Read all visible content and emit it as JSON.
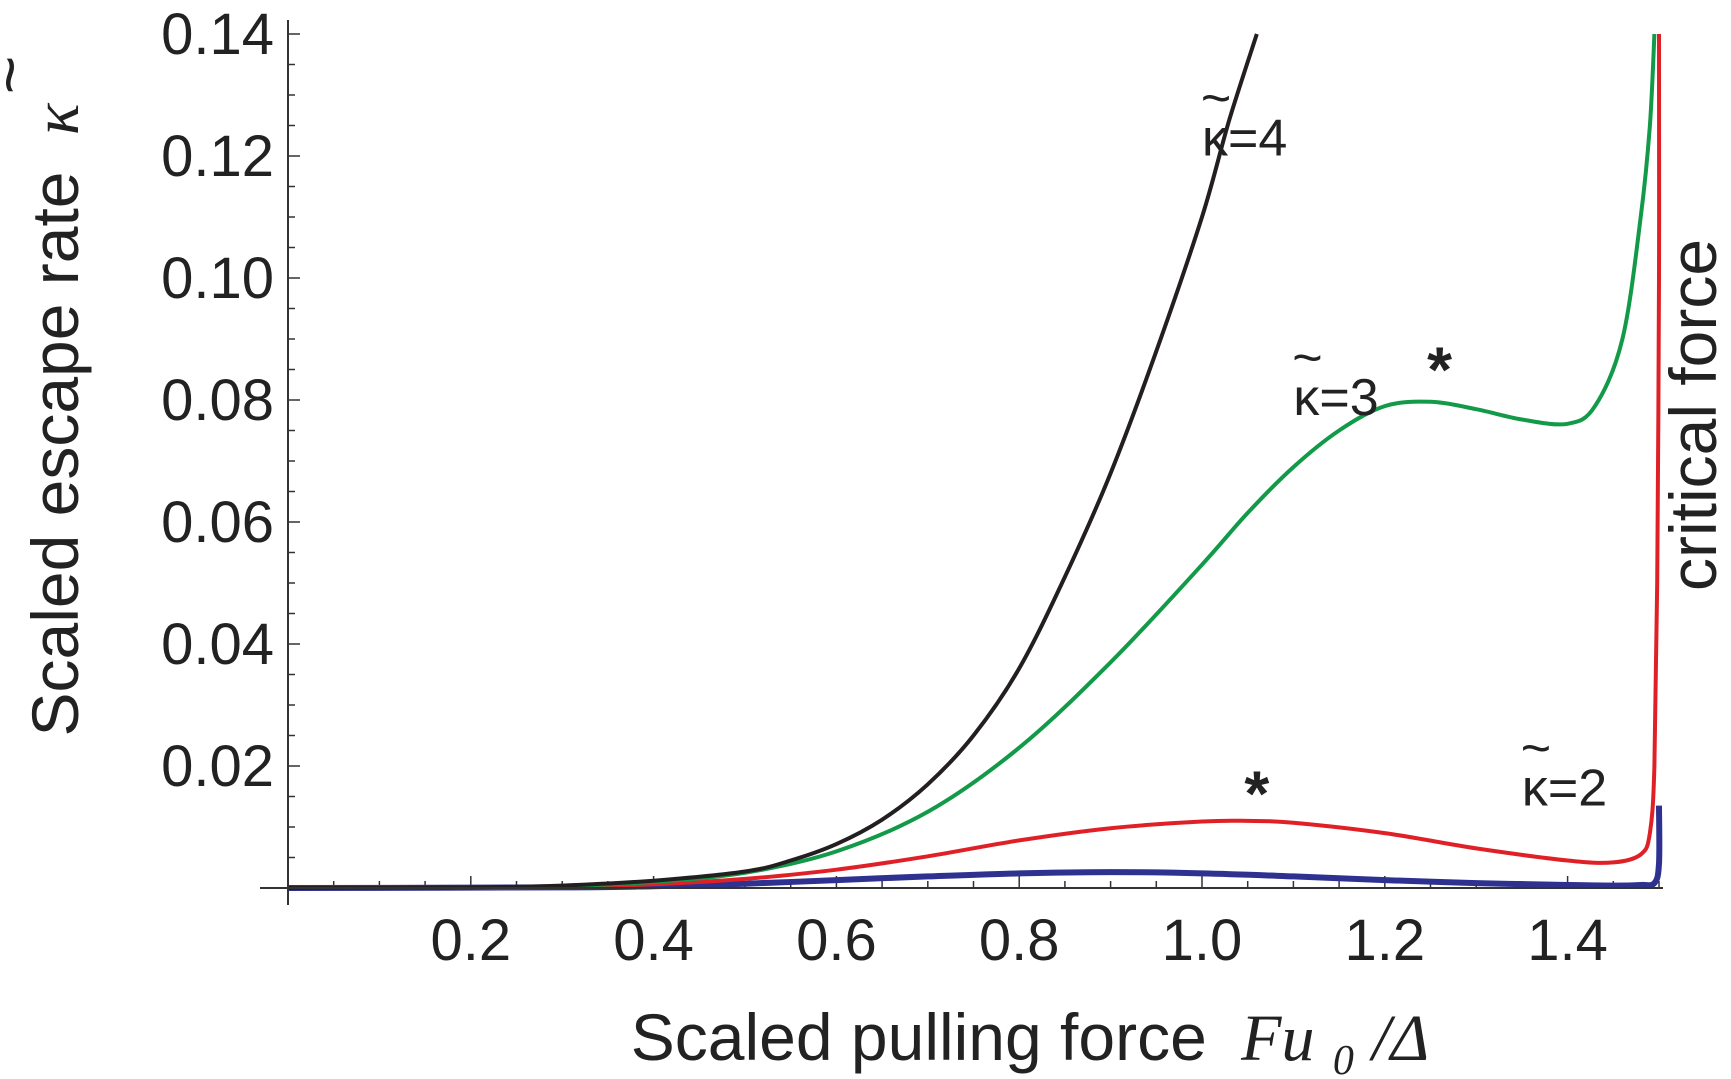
{
  "chart_data": {
    "type": "line",
    "xlabel": "Scaled pulling force",
    "xlabel_math": "Fu",
    "xlabel_sub": "0",
    "xlabel_tail": "/Δ",
    "ylabel": "Scaled escape rate",
    "ylabel_symbol": "κ",
    "ylabel_tilde": "~",
    "xlim": [
      0,
      1.5
    ],
    "ylim": [
      0,
      0.14
    ],
    "x_ticks": [
      "0.2",
      "0.4",
      "0.6",
      "0.8",
      "1.0",
      "1.2",
      "1.4"
    ],
    "x_tick_values": [
      0.2,
      0.4,
      0.6,
      0.8,
      1.0,
      1.2,
      1.4
    ],
    "y_ticks": [
      "0.02",
      "0.04",
      "0.06",
      "0.08",
      "0.10",
      "0.12",
      "0.14"
    ],
    "y_tick_values": [
      0.02,
      0.04,
      0.06,
      0.08,
      0.1,
      0.12,
      0.14
    ],
    "critical_force": 1.5,
    "critical_force_label": "critical force",
    "series": [
      {
        "label": "κ=4",
        "color": "#231f20",
        "x": [
          0,
          0.2,
          0.3,
          0.4,
          0.5,
          0.55,
          0.6,
          0.65,
          0.7,
          0.75,
          0.8,
          0.85,
          0.9,
          0.95,
          1.0,
          1.03,
          1.06
        ],
        "y": [
          0.0,
          0.0001,
          0.0004,
          0.0012,
          0.0027,
          0.0045,
          0.0072,
          0.0112,
          0.017,
          0.025,
          0.036,
          0.051,
          0.068,
          0.088,
          0.11,
          0.126,
          0.14
        ]
      },
      {
        "label": "κ=3",
        "color": "#129a48",
        "x": [
          0,
          0.2,
          0.3,
          0.4,
          0.5,
          0.6,
          0.7,
          0.8,
          0.9,
          1.0,
          1.05,
          1.1,
          1.15,
          1.2,
          1.25,
          1.3,
          1.35,
          1.4,
          1.43,
          1.46,
          1.48,
          1.49,
          1.495
        ],
        "y": [
          0.0,
          0.0001,
          0.0003,
          0.001,
          0.0025,
          0.006,
          0.0125,
          0.023,
          0.037,
          0.053,
          0.0615,
          0.069,
          0.075,
          0.079,
          0.0797,
          0.0785,
          0.0768,
          0.0761,
          0.079,
          0.09,
          0.11,
          0.125,
          0.14
        ]
      },
      {
        "label": "κ=2",
        "color": "#df2127",
        "x": [
          0,
          0.2,
          0.3,
          0.4,
          0.5,
          0.6,
          0.7,
          0.8,
          0.9,
          1.0,
          1.05,
          1.1,
          1.2,
          1.3,
          1.4,
          1.45,
          1.48,
          1.49,
          1.495,
          1.498,
          1.5,
          1.5
        ],
        "y": [
          0.0,
          0.0001,
          0.0002,
          0.0006,
          0.0015,
          0.003,
          0.0052,
          0.0078,
          0.0098,
          0.0109,
          0.011,
          0.0107,
          0.009,
          0.0065,
          0.0045,
          0.0042,
          0.0055,
          0.009,
          0.02,
          0.05,
          0.1,
          0.14
        ]
      },
      {
        "label": "",
        "color": "#2e3190",
        "x": [
          0,
          0.3,
          0.4,
          0.5,
          0.6,
          0.7,
          0.8,
          0.9,
          1.0,
          1.1,
          1.2,
          1.3,
          1.4,
          1.45,
          1.48,
          1.495,
          1.5,
          1.5
        ],
        "y": [
          0.0,
          0.0001,
          0.0003,
          0.0007,
          0.0013,
          0.0019,
          0.0024,
          0.0026,
          0.0024,
          0.0019,
          0.0013,
          0.0008,
          0.0005,
          0.0004,
          0.0005,
          0.0008,
          0.004,
          0.0135
        ]
      }
    ],
    "annotations": [
      {
        "text": "κ=4",
        "x": 1.0,
        "y": 0.123
      },
      {
        "text": "κ=3",
        "x": 1.1,
        "y": 0.0805
      },
      {
        "text": "κ=2",
        "x": 1.35,
        "y": 0.0165
      },
      {
        "text": "*",
        "x": 1.26,
        "y": 0.085
      },
      {
        "text": "*",
        "x": 1.06,
        "y": 0.0155
      }
    ]
  }
}
